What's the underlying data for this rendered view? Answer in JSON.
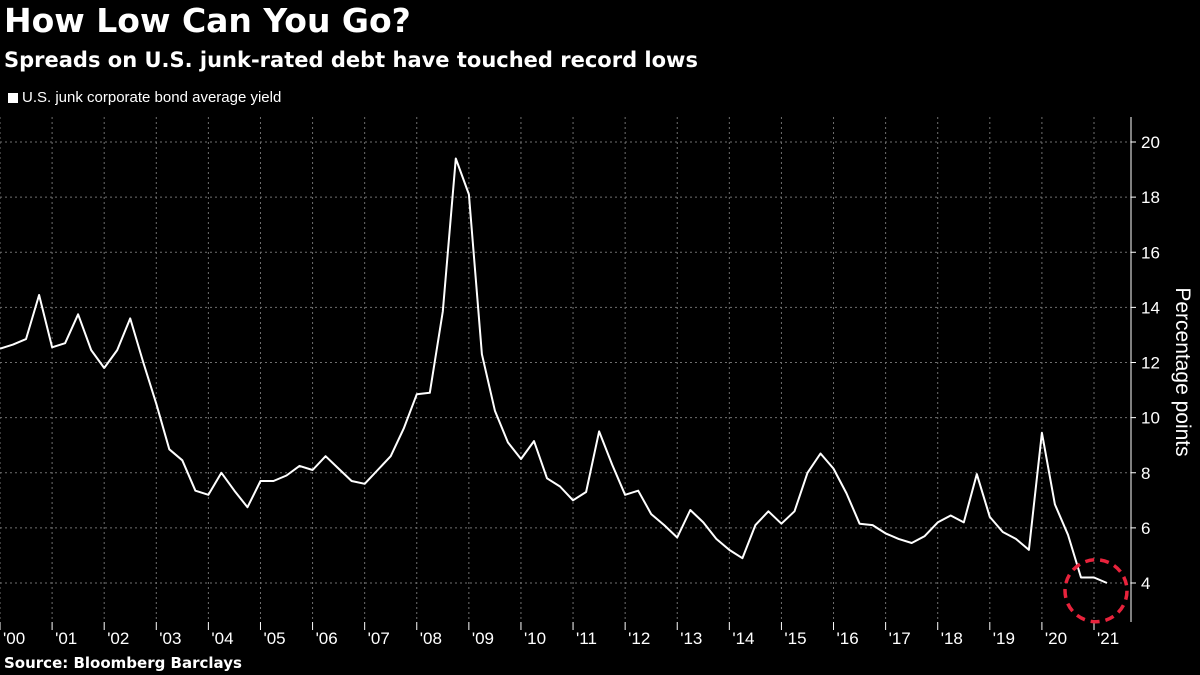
{
  "header": {
    "title": "How Low Can You Go?",
    "subtitle": "Spreads on U.S. junk-rated debt have touched record lows"
  },
  "footer": {
    "source": "Source: Bloomberg Barclays"
  },
  "colors": {
    "background": "#000000",
    "line": "#ffffff",
    "grid": "#6f6f6f",
    "highlight_circle": "#e8233c"
  },
  "chart_data": {
    "type": "line",
    "title": "How Low Can You Go?",
    "subtitle": "Spreads on U.S. junk-rated debt have touched record lows",
    "xlabel": "",
    "ylabel": "Percentage points",
    "y_axis_side": "right",
    "ylim": [
      2.5,
      20.8
    ],
    "yticks": [
      4,
      6,
      8,
      10,
      12,
      14,
      16,
      18,
      20
    ],
    "xlim": [
      2000.0,
      2021.6
    ],
    "x_tick_labels": [
      "'00",
      "'01",
      "'02",
      "'03",
      "'04",
      "'05",
      "'06",
      "'07",
      "'08",
      "'09",
      "'10",
      "'11",
      "'12",
      "'13",
      "'14",
      "'15",
      "'16",
      "'17",
      "'18",
      "'19",
      "'20",
      "'21"
    ],
    "grid": true,
    "legend_placement": "top-left",
    "annotations": [
      {
        "type": "dashed-circle",
        "center_x": 2021.0,
        "center_y": 3.9,
        "note": "record low highlight"
      }
    ],
    "series": [
      {
        "name": "U.S. junk corporate bond average yield",
        "x": [
          2000.0,
          2000.25,
          2000.5,
          2000.75,
          2001.0,
          2001.25,
          2001.5,
          2001.75,
          2002.0,
          2002.25,
          2002.5,
          2002.75,
          2003.0,
          2003.25,
          2003.5,
          2003.75,
          2004.0,
          2004.25,
          2004.5,
          2004.75,
          2005.0,
          2005.25,
          2005.5,
          2005.75,
          2006.0,
          2006.25,
          2006.5,
          2006.75,
          2007.0,
          2007.25,
          2007.5,
          2007.75,
          2008.0,
          2008.25,
          2008.5,
          2008.75,
          2009.0,
          2009.25,
          2009.5,
          2009.75,
          2010.0,
          2010.25,
          2010.5,
          2010.75,
          2011.0,
          2011.25,
          2011.5,
          2011.75,
          2012.0,
          2012.25,
          2012.5,
          2012.75,
          2013.0,
          2013.25,
          2013.5,
          2013.75,
          2014.0,
          2014.25,
          2014.5,
          2014.75,
          2015.0,
          2015.25,
          2015.5,
          2015.75,
          2016.0,
          2016.25,
          2016.5,
          2016.75,
          2017.0,
          2017.25,
          2017.5,
          2017.75,
          2018.0,
          2018.25,
          2018.5,
          2018.75,
          2019.0,
          2019.25,
          2019.5,
          2019.75,
          2020.0,
          2020.25,
          2020.5,
          2020.75,
          2021.0,
          2021.25
        ],
        "y": [
          12.5,
          12.65,
          12.85,
          14.45,
          12.55,
          12.7,
          13.75,
          12.45,
          11.8,
          12.45,
          13.6,
          12.0,
          10.5,
          8.85,
          8.45,
          7.35,
          7.2,
          8.0,
          7.35,
          6.75,
          7.7,
          7.7,
          7.9,
          8.25,
          8.1,
          8.6,
          8.15,
          7.7,
          7.6,
          8.1,
          8.6,
          9.6,
          10.85,
          10.9,
          13.85,
          19.4,
          18.1,
          12.3,
          10.25,
          9.1,
          8.5,
          9.15,
          7.8,
          7.5,
          7.0,
          7.3,
          9.5,
          8.3,
          7.2,
          7.35,
          6.5,
          6.1,
          5.65,
          6.65,
          6.2,
          5.6,
          5.2,
          4.9,
          6.1,
          6.6,
          6.15,
          6.6,
          8.0,
          8.7,
          8.15,
          7.25,
          6.15,
          6.1,
          5.8,
          5.6,
          5.45,
          5.7,
          6.2,
          6.45,
          6.2,
          7.95,
          6.4,
          5.85,
          5.6,
          5.2,
          9.45,
          6.85,
          5.75,
          4.2,
          4.2,
          4.0
        ]
      }
    ]
  }
}
